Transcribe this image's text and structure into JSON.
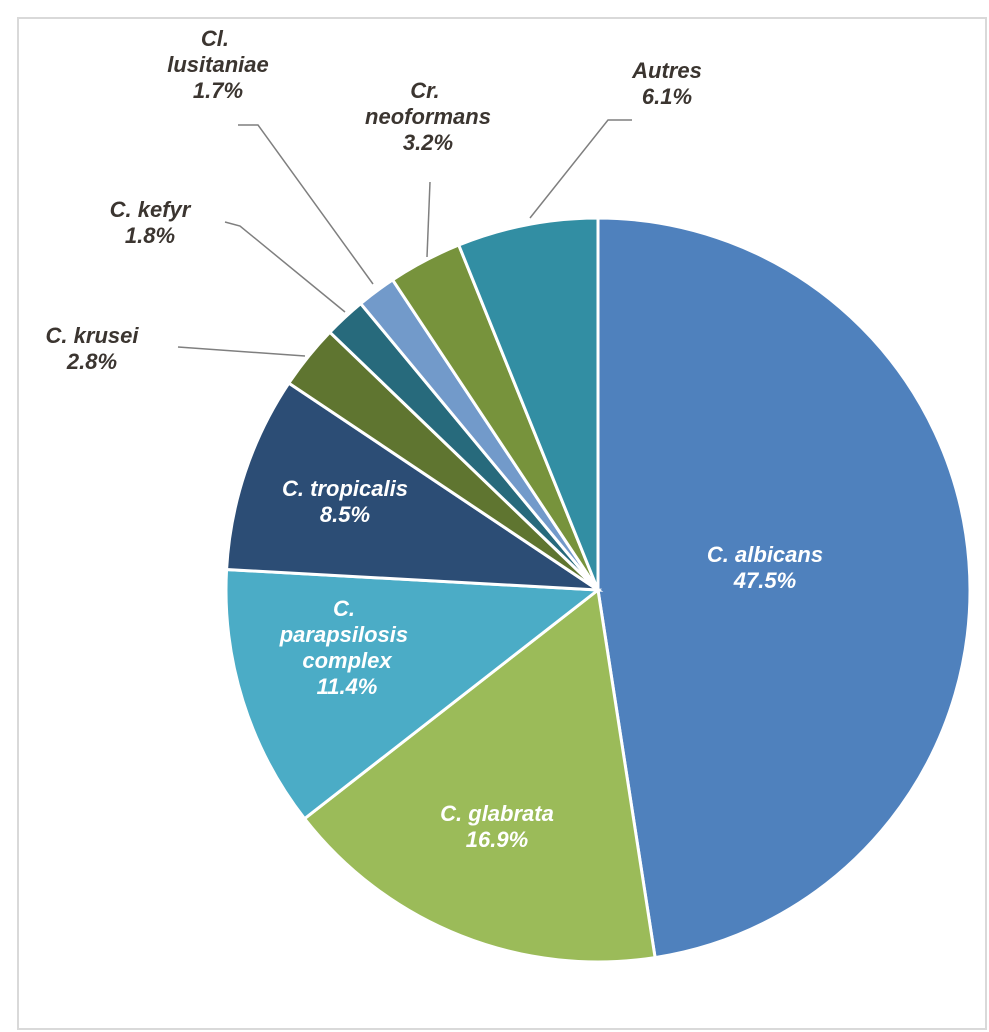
{
  "chart_data": {
    "type": "pie",
    "categories": [
      "C. albicans",
      "C. glabrata",
      "C. parapsilosis complex",
      "C. tropicalis",
      "C. krusei",
      "C. kefyr",
      "Cl. lusitaniae",
      "Cr. neoformans",
      "Autres"
    ],
    "values": [
      47.5,
      16.9,
      11.4,
      8.5,
      2.8,
      1.8,
      1.7,
      3.2,
      6.1
    ],
    "value_labels": [
      "47.5%",
      "16.9%",
      "11.4%",
      "8.5%",
      "2.8%",
      "1.8%",
      "1.7%",
      "3.2%",
      "6.1%"
    ],
    "colors": [
      "#4f81bd",
      "#9bbb59",
      "#4bacc6",
      "#2c4d75",
      "#5f7530",
      "#276a7c",
      "#729aca",
      "#77933c",
      "#328ea3"
    ]
  }
}
